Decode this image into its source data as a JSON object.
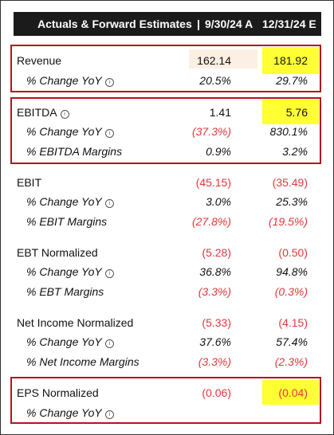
{
  "header": {
    "title": "Actuals & Forward Estimates",
    "separator": "|",
    "period1": "9/30/24 A",
    "period2": "12/31/24 E"
  },
  "icons": {
    "info": "info-circle-icon"
  },
  "colors": {
    "header_bg": "#1b1b1b",
    "box_border": "#b0151f",
    "negative": "#e0383a",
    "highlight_yellow": "#ffff33",
    "highlight_peach": "#fcefe3"
  },
  "rows": {
    "revenue": {
      "label": "Revenue",
      "v1": "162.14",
      "v2": "181.92"
    },
    "revenue_yoy": {
      "label": "% Change YoY",
      "v1": "20.5%",
      "v2": "29.7%"
    },
    "ebitda": {
      "label": "EBITDA",
      "v1": "1.41",
      "v2": "5.76"
    },
    "ebitda_yoy": {
      "label": "% Change YoY",
      "v1": "(37.3%)",
      "v2": "830.1%"
    },
    "ebitda_margins": {
      "label": "% EBITDA Margins",
      "v1": "0.9%",
      "v2": "3.2%"
    },
    "ebit": {
      "label": "EBIT",
      "v1": "(45.15)",
      "v2": "(35.49)"
    },
    "ebit_yoy": {
      "label": "% Change YoY",
      "v1": "3.0%",
      "v2": "25.3%"
    },
    "ebit_margins": {
      "label": "% EBIT Margins",
      "v1": "(27.8%)",
      "v2": "(19.5%)"
    },
    "ebt": {
      "label": "EBT Normalized",
      "v1": "(5.28)",
      "v2": "(0.50)"
    },
    "ebt_yoy": {
      "label": "% Change YoY",
      "v1": "36.8%",
      "v2": "94.8%"
    },
    "ebt_margins": {
      "label": "% EBT Margins",
      "v1": "(3.3%)",
      "v2": "(0.3%)"
    },
    "ni": {
      "label": "Net Income Normalized",
      "v1": "(5.33)",
      "v2": "(4.15)"
    },
    "ni_yoy": {
      "label": "% Change YoY",
      "v1": "37.6%",
      "v2": "57.4%"
    },
    "ni_margins": {
      "label": "% Net Income Margins",
      "v1": "(3.3%)",
      "v2": "(2.3%)"
    },
    "eps": {
      "label": "EPS Normalized",
      "v1": "(0.06)",
      "v2": "(0.04)"
    },
    "eps_yoy": {
      "label": "% Change YoY",
      "v1": "",
      "v2": ""
    }
  }
}
